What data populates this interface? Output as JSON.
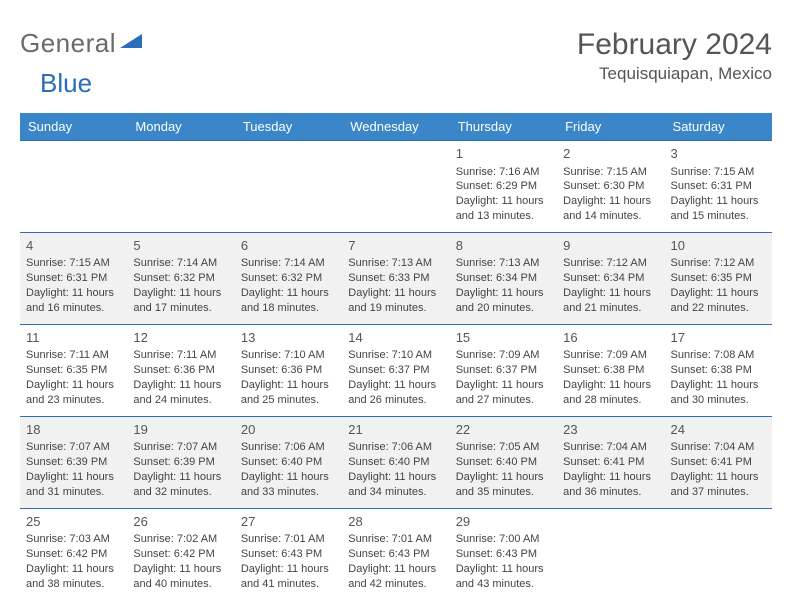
{
  "logo": {
    "text1": "General",
    "text2": "Blue"
  },
  "header": {
    "title": "February 2024",
    "location": "Tequisquiapan, Mexico"
  },
  "colors": {
    "header_bg": "#3a86c8",
    "header_text": "#ffffff",
    "border": "#2a6db8",
    "shade": "#f1f1f1",
    "text": "#444444",
    "logo_gray": "#6a6a6a",
    "logo_blue": "#2a6db8"
  },
  "calendar": {
    "type": "table",
    "columns": [
      "Sunday",
      "Monday",
      "Tuesday",
      "Wednesday",
      "Thursday",
      "Friday",
      "Saturday"
    ],
    "first_weekday_index": 4,
    "days": [
      {
        "n": 1,
        "sr": "7:16 AM",
        "ss": "6:29 PM",
        "d": "11 hours and 13 minutes."
      },
      {
        "n": 2,
        "sr": "7:15 AM",
        "ss": "6:30 PM",
        "d": "11 hours and 14 minutes."
      },
      {
        "n": 3,
        "sr": "7:15 AM",
        "ss": "6:31 PM",
        "d": "11 hours and 15 minutes."
      },
      {
        "n": 4,
        "sr": "7:15 AM",
        "ss": "6:31 PM",
        "d": "11 hours and 16 minutes."
      },
      {
        "n": 5,
        "sr": "7:14 AM",
        "ss": "6:32 PM",
        "d": "11 hours and 17 minutes."
      },
      {
        "n": 6,
        "sr": "7:14 AM",
        "ss": "6:32 PM",
        "d": "11 hours and 18 minutes."
      },
      {
        "n": 7,
        "sr": "7:13 AM",
        "ss": "6:33 PM",
        "d": "11 hours and 19 minutes."
      },
      {
        "n": 8,
        "sr": "7:13 AM",
        "ss": "6:34 PM",
        "d": "11 hours and 20 minutes."
      },
      {
        "n": 9,
        "sr": "7:12 AM",
        "ss": "6:34 PM",
        "d": "11 hours and 21 minutes."
      },
      {
        "n": 10,
        "sr": "7:12 AM",
        "ss": "6:35 PM",
        "d": "11 hours and 22 minutes."
      },
      {
        "n": 11,
        "sr": "7:11 AM",
        "ss": "6:35 PM",
        "d": "11 hours and 23 minutes."
      },
      {
        "n": 12,
        "sr": "7:11 AM",
        "ss": "6:36 PM",
        "d": "11 hours and 24 minutes."
      },
      {
        "n": 13,
        "sr": "7:10 AM",
        "ss": "6:36 PM",
        "d": "11 hours and 25 minutes."
      },
      {
        "n": 14,
        "sr": "7:10 AM",
        "ss": "6:37 PM",
        "d": "11 hours and 26 minutes."
      },
      {
        "n": 15,
        "sr": "7:09 AM",
        "ss": "6:37 PM",
        "d": "11 hours and 27 minutes."
      },
      {
        "n": 16,
        "sr": "7:09 AM",
        "ss": "6:38 PM",
        "d": "11 hours and 28 minutes."
      },
      {
        "n": 17,
        "sr": "7:08 AM",
        "ss": "6:38 PM",
        "d": "11 hours and 30 minutes."
      },
      {
        "n": 18,
        "sr": "7:07 AM",
        "ss": "6:39 PM",
        "d": "11 hours and 31 minutes."
      },
      {
        "n": 19,
        "sr": "7:07 AM",
        "ss": "6:39 PM",
        "d": "11 hours and 32 minutes."
      },
      {
        "n": 20,
        "sr": "7:06 AM",
        "ss": "6:40 PM",
        "d": "11 hours and 33 minutes."
      },
      {
        "n": 21,
        "sr": "7:06 AM",
        "ss": "6:40 PM",
        "d": "11 hours and 34 minutes."
      },
      {
        "n": 22,
        "sr": "7:05 AM",
        "ss": "6:40 PM",
        "d": "11 hours and 35 minutes."
      },
      {
        "n": 23,
        "sr": "7:04 AM",
        "ss": "6:41 PM",
        "d": "11 hours and 36 minutes."
      },
      {
        "n": 24,
        "sr": "7:04 AM",
        "ss": "6:41 PM",
        "d": "11 hours and 37 minutes."
      },
      {
        "n": 25,
        "sr": "7:03 AM",
        "ss": "6:42 PM",
        "d": "11 hours and 38 minutes."
      },
      {
        "n": 26,
        "sr": "7:02 AM",
        "ss": "6:42 PM",
        "d": "11 hours and 40 minutes."
      },
      {
        "n": 27,
        "sr": "7:01 AM",
        "ss": "6:43 PM",
        "d": "11 hours and 41 minutes."
      },
      {
        "n": 28,
        "sr": "7:01 AM",
        "ss": "6:43 PM",
        "d": "11 hours and 42 minutes."
      },
      {
        "n": 29,
        "sr": "7:00 AM",
        "ss": "6:43 PM",
        "d": "11 hours and 43 minutes."
      }
    ],
    "labels": {
      "sunrise": "Sunrise:",
      "sunset": "Sunset:",
      "daylight": "Daylight:"
    }
  }
}
